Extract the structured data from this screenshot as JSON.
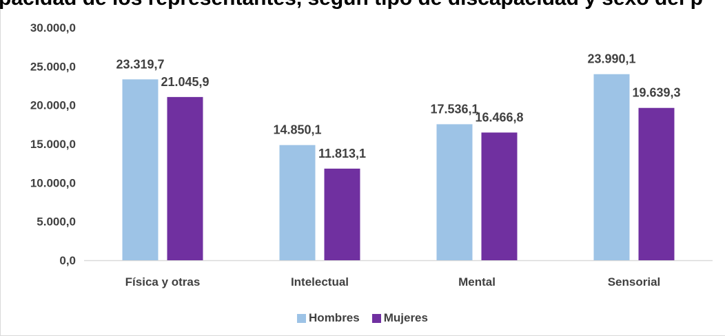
{
  "chart_data": {
    "type": "bar",
    "title": "pacidad de los representantes, según tipo de discapacidad y sexo del p",
    "categories": [
      "Física y otras",
      "Intelectual",
      "Mental",
      "Sensorial"
    ],
    "series": [
      {
        "name": "Hombres",
        "color": "#9dc3e6",
        "values": [
          23319.7,
          14850.1,
          17536.1,
          23990.1
        ],
        "labels": [
          "23.319,7",
          "14.850,1",
          "17.536,1",
          "23.990,1"
        ]
      },
      {
        "name": "Mujeres",
        "color": "#7030a0",
        "values": [
          21045.9,
          11813.1,
          16466.8,
          19639.3
        ],
        "labels": [
          "21.045,9",
          "11.813,1",
          "16.466,8",
          "19.639,3"
        ]
      }
    ],
    "ylim": [
      0,
      30000
    ],
    "yticks": [
      0,
      5000,
      10000,
      15000,
      20000,
      25000,
      30000
    ],
    "ytick_labels": [
      "0,0",
      "5.000,0",
      "10.000,0",
      "15.000,0",
      "20.000,0",
      "25.000,0",
      "30.000,0"
    ],
    "grid": false,
    "legend_position": "bottom"
  }
}
